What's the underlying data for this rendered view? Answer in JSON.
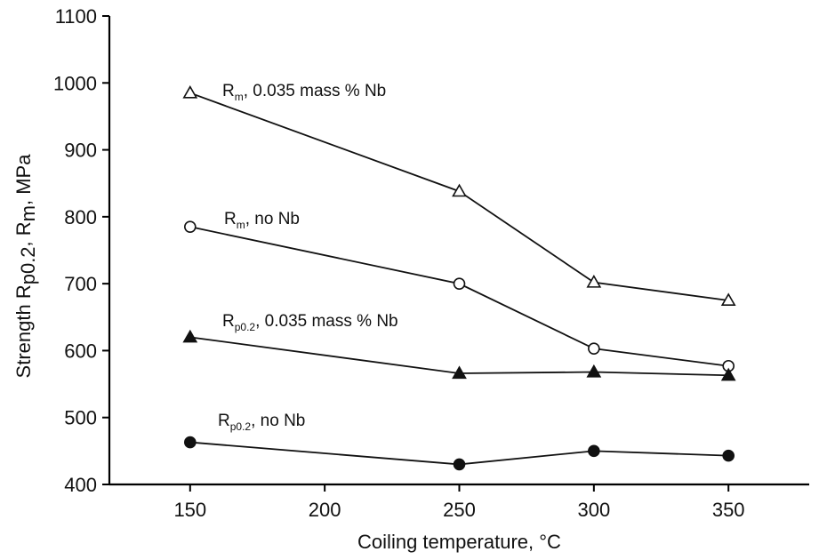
{
  "chart_data": {
    "type": "line",
    "xlabel": "Coiling temperature, °C",
    "ylabel": {
      "parts": [
        {
          "t": "Strength R",
          "sub": false
        },
        {
          "t": "p0.2",
          "sub": true
        },
        {
          "t": ", R",
          "sub": false
        },
        {
          "t": "m",
          "sub": true
        },
        {
          "t": ", MPa",
          "sub": false
        }
      ]
    },
    "xlim": [
      120,
      380
    ],
    "ylim": [
      400,
      1100
    ],
    "xticks": [
      150,
      200,
      250,
      300,
      350
    ],
    "yticks": [
      400,
      500,
      600,
      700,
      800,
      900,
      1000,
      1100
    ],
    "grid": false,
    "series": [
      {
        "marker": "triangle-open",
        "x": [
          150,
          250,
          300,
          350
        ],
        "y": [
          985,
          838,
          702,
          675
        ],
        "label": {
          "parts": [
            {
              "t": "R",
              "sub": false
            },
            {
              "t": "m",
              "sub": true
            },
            {
              "t": ", 0.035 mass % Nb",
              "sub": false
            }
          ]
        }
      },
      {
        "marker": "circle-open",
        "x": [
          150,
          250,
          300,
          350
        ],
        "y": [
          785,
          700,
          603,
          577
        ],
        "label": {
          "parts": [
            {
              "t": "R",
              "sub": false
            },
            {
              "t": "m",
              "sub": true
            },
            {
              "t": ", no Nb",
              "sub": false
            }
          ]
        }
      },
      {
        "marker": "triangle-filled",
        "x": [
          150,
          250,
          300,
          350
        ],
        "y": [
          620,
          566,
          568,
          563
        ],
        "label": {
          "parts": [
            {
              "t": "R",
              "sub": false
            },
            {
              "t": "p0.2",
              "sub": true
            },
            {
              "t": ", 0.035 mass % Nb",
              "sub": false
            }
          ]
        }
      },
      {
        "marker": "circle-filled",
        "x": [
          150,
          250,
          300,
          350
        ],
        "y": [
          463,
          430,
          450,
          443
        ],
        "label": {
          "parts": [
            {
              "t": "R",
              "sub": false
            },
            {
              "t": "p0.2",
              "sub": true
            },
            {
              "t": ", no Nb",
              "sub": false
            }
          ]
        }
      }
    ]
  }
}
